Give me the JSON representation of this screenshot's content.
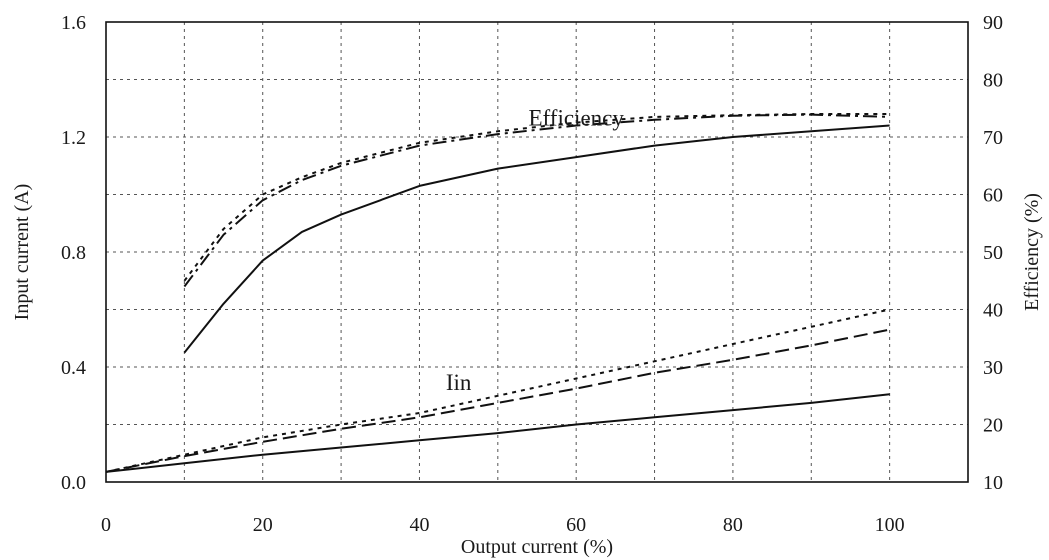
{
  "chart_data": {
    "type": "line",
    "xlabel": "Output current (%)",
    "ylabel_left": "Input current (A)",
    "ylabel_right": "Efficiency (%)",
    "xlim": [
      0,
      110
    ],
    "ylim_left": [
      0,
      1.6
    ],
    "ylim_right": [
      10,
      90
    ],
    "x_ticks": [
      "0",
      "20",
      "40",
      "60",
      "80",
      "100"
    ],
    "y_left_ticks": [
      "0.0",
      "0.4",
      "0.8",
      "1.2",
      "1.6"
    ],
    "y_right_ticks": [
      "10",
      "20",
      "30",
      "40",
      "50",
      "60",
      "70",
      "80",
      "90"
    ],
    "grid": true,
    "annotations": [
      {
        "text": "Efficiency",
        "x": 60,
        "y": 1.24
      },
      {
        "text": "Iin",
        "x": 45,
        "y": 0.32
      }
    ],
    "series": [
      {
        "axis": "right",
        "style": "solid",
        "x": [
          10,
          15,
          20,
          25,
          30,
          40,
          50,
          60,
          70,
          80,
          90,
          100
        ],
        "y": [
          32.5,
          41,
          48.5,
          53.5,
          56.5,
          61.5,
          64.5,
          66.5,
          68.5,
          70,
          71,
          72
        ]
      },
      {
        "axis": "right",
        "style": "dotted",
        "x": [
          10,
          15,
          20,
          25,
          30,
          40,
          50,
          60,
          70,
          80,
          90,
          100
        ],
        "y": [
          45,
          54,
          60,
          63,
          65.5,
          69,
          71,
          72.5,
          73.5,
          73.8,
          74,
          74
        ]
      },
      {
        "axis": "right",
        "style": "dashdot",
        "x": [
          10,
          15,
          20,
          25,
          30,
          40,
          50,
          60,
          70,
          80,
          90,
          100
        ],
        "y": [
          44,
          53,
          59,
          62.5,
          65,
          68.5,
          70.5,
          72,
          73,
          73.7,
          73.9,
          73.5
        ]
      },
      {
        "axis": "left",
        "style": "solid",
        "x": [
          0,
          10,
          20,
          30,
          40,
          50,
          60,
          70,
          80,
          90,
          100
        ],
        "y": [
          0.035,
          0.065,
          0.095,
          0.12,
          0.145,
          0.17,
          0.2,
          0.225,
          0.25,
          0.275,
          0.305
        ]
      },
      {
        "axis": "left",
        "style": "dotted",
        "x": [
          0,
          10,
          20,
          30,
          40,
          50,
          60,
          70,
          80,
          90,
          100
        ],
        "y": [
          0.035,
          0.095,
          0.155,
          0.2,
          0.24,
          0.3,
          0.36,
          0.42,
          0.48,
          0.54,
          0.6
        ]
      },
      {
        "axis": "left",
        "style": "dashed",
        "x": [
          0,
          10,
          20,
          30,
          40,
          50,
          60,
          70,
          80,
          90,
          100
        ],
        "y": [
          0.035,
          0.09,
          0.14,
          0.185,
          0.225,
          0.275,
          0.325,
          0.38,
          0.425,
          0.475,
          0.53
        ]
      }
    ]
  }
}
